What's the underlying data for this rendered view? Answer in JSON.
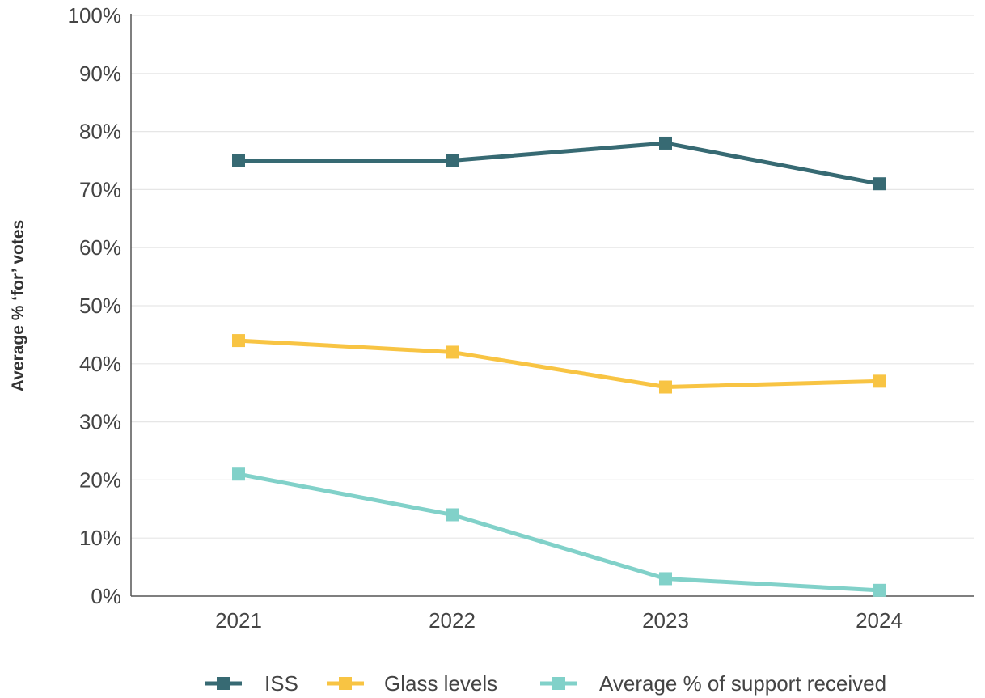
{
  "chart_data": {
    "type": "line",
    "categories": [
      "2021",
      "2022",
      "2023",
      "2024"
    ],
    "ylabel": "Average % ‘for’ votes",
    "ylim": [
      0,
      100
    ],
    "yticks": [
      0,
      10,
      20,
      30,
      40,
      50,
      60,
      70,
      80,
      90,
      100
    ],
    "ytick_labels": [
      "0%",
      "10%",
      "20%",
      "30%",
      "40%",
      "50%",
      "60%",
      "70%",
      "80%",
      "90%",
      "100%"
    ],
    "grid": true,
    "legend_position": "bottom",
    "series": [
      {
        "name": "ISS",
        "color": "#376a73",
        "values": [
          75,
          75,
          78,
          71
        ]
      },
      {
        "name": "Glass levels",
        "color": "#f8c443",
        "values": [
          44,
          42,
          36,
          37
        ]
      },
      {
        "name": "Average % of support received",
        "color": "#81d1c9",
        "values": [
          21,
          14,
          3,
          1
        ]
      }
    ]
  }
}
